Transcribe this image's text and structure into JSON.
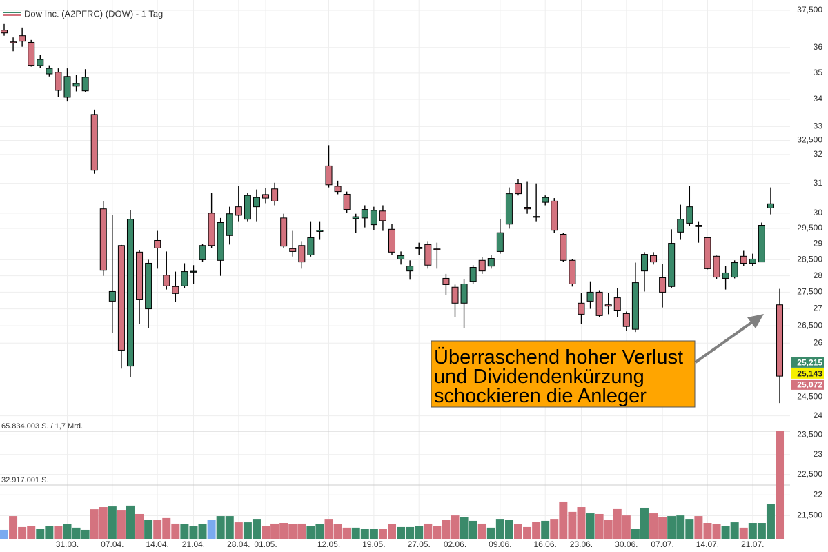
{
  "chart_data": {
    "type": "candlestick",
    "title": "Dow Inc. (A2PFRC) (DOW) - 1 Tag",
    "categories": [
      null,
      null,
      null,
      null,
      null,
      null,
      null,
      "31.03.",
      null,
      null,
      null,
      null,
      "07.04.",
      null,
      null,
      null,
      null,
      "14.04.",
      null,
      null,
      null,
      "21.04.",
      null,
      null,
      null,
      null,
      "28.04.",
      null,
      null,
      "01.05.",
      null,
      null,
      null,
      null,
      null,
      null,
      "12.05.",
      null,
      null,
      null,
      null,
      "19.05.",
      null,
      null,
      null,
      null,
      "27.05.",
      null,
      null,
      null,
      "02.06.",
      null,
      null,
      null,
      null,
      "09.06.",
      null,
      null,
      null,
      null,
      "16.06.",
      null,
      null,
      null,
      "23.06.",
      null,
      null,
      null,
      null,
      "30.06.",
      null,
      null,
      null,
      "07.07.",
      null,
      null,
      null,
      null,
      "14.07.",
      null,
      null,
      null,
      null,
      "21.07.",
      null,
      null,
      null
    ],
    "open": [
      36.69,
      36.22,
      36.47,
      36.2,
      35.29,
      34.97,
      35.03,
      34.08,
      34.5,
      34.32,
      33.44,
      30.14,
      27.23,
      28.95,
      25.35,
      28.74,
      27.0,
      29.11,
      28.02,
      27.67,
      27.69,
      28.12,
      28.5,
      30.0,
      28.48,
      29.27,
      30.21,
      29.8,
      30.21,
      30.62,
      30.81,
      29.84,
      28.85,
      28.95,
      28.65,
      29.4,
      31.6,
      30.9,
      30.63,
      29.82,
      29.84,
      29.62,
      30.07,
      29.47,
      28.52,
      28.15,
      28.85,
      28.98,
      28.84,
      27.92,
      27.65,
      27.17,
      27.83,
      28.48,
      28.3,
      28.76,
      29.64,
      31.0,
      30.19,
      29.89,
      30.36,
      30.4,
      29.31,
      28.48,
      27.17,
      27.23,
      27.5,
      27.12,
      27.33,
      26.86,
      26.4,
      28.15,
      28.63,
      27.94,
      27.67,
      29.38,
      29.67,
      29.6,
      29.2,
      28.61,
      27.92,
      27.96,
      28.61,
      28.39,
      28.43,
      30.17,
      27.12
    ],
    "high": [
      36.94,
      36.4,
      36.8,
      36.3,
      35.7,
      35.3,
      35.18,
      35.18,
      34.92,
      35.15,
      33.62,
      30.4,
      29.93,
      28.97,
      30.1,
      28.8,
      28.5,
      29.42,
      28.76,
      28.13,
      28.39,
      28.33,
      29.0,
      30.68,
      29.84,
      30.21,
      30.9,
      30.68,
      30.79,
      30.84,
      31.02,
      29.98,
      29.42,
      29.09,
      29.71,
      29.71,
      32.33,
      31.09,
      30.72,
      29.98,
      30.26,
      30.21,
      30.26,
      29.64,
      28.76,
      28.48,
      29.04,
      29.09,
      29.04,
      28.06,
      27.73,
      27.9,
      28.33,
      28.59,
      28.65,
      29.8,
      30.86,
      31.14,
      31.05,
      31.0,
      30.59,
      30.5,
      29.36,
      28.52,
      27.48,
      27.83,
      27.54,
      27.48,
      27.63,
      26.92,
      28.41,
      28.74,
      28.74,
      28.37,
      29.47,
      30.28,
      30.9,
      29.71,
      29.2,
      28.63,
      28.3,
      28.48,
      28.78,
      28.69,
      29.69,
      30.86,
      27.6
    ],
    "low": [
      36.47,
      35.85,
      36.03,
      35.25,
      35.2,
      34.87,
      34.08,
      33.92,
      34.3,
      34.26,
      31.33,
      28.0,
      26.3,
      25.28,
      25.04,
      26.56,
      26.44,
      28.22,
      27.58,
      27.21,
      27.62,
      27.75,
      28.43,
      28.87,
      28.0,
      28.98,
      29.71,
      29.71,
      29.71,
      30.33,
      30.26,
      28.87,
      28.6,
      28.22,
      28.6,
      29.13,
      30.86,
      30.63,
      30.02,
      29.36,
      29.53,
      29.44,
      29.42,
      28.65,
      28.35,
      27.88,
      28.65,
      28.22,
      28.22,
      27.42,
      26.76,
      26.44,
      27.75,
      28.06,
      28.22,
      28.69,
      29.49,
      30.59,
      29.98,
      29.71,
      30.26,
      29.36,
      28.43,
      27.67,
      26.56,
      27.0,
      26.76,
      26.84,
      26.76,
      26.36,
      26.32,
      27.52,
      28.35,
      27.04,
      27.62,
      29.13,
      29.58,
      29.04,
      28.2,
      27.9,
      27.58,
      27.92,
      28.3,
      28.3,
      28.43,
      29.96,
      24.34
    ],
    "close": [
      36.58,
      36.18,
      36.25,
      35.3,
      35.53,
      35.18,
      34.34,
      34.87,
      34.6,
      34.84,
      31.45,
      28.17,
      27.52,
      25.8,
      29.8,
      27.27,
      28.39,
      28.87,
      27.69,
      27.46,
      28.13,
      28.14,
      28.95,
      28.95,
      29.69,
      29.98,
      29.93,
      30.59,
      30.52,
      30.5,
      30.4,
      28.93,
      28.76,
      28.43,
      29.2,
      29.44,
      30.95,
      30.72,
      30.12,
      29.88,
      30.12,
      30.09,
      29.75,
      28.74,
      28.63,
      28.3,
      28.89,
      28.33,
      28.82,
      27.73,
      27.17,
      27.75,
      28.26,
      28.15,
      28.54,
      29.36,
      30.65,
      30.65,
      30.14,
      29.87,
      30.52,
      29.44,
      28.48,
      27.75,
      26.84,
      27.5,
      26.8,
      27.08,
      26.96,
      26.48,
      27.79,
      28.67,
      28.43,
      27.5,
      29.02,
      29.8,
      30.21,
      29.56,
      28.22,
      27.96,
      28.09,
      28.41,
      28.39,
      28.52,
      29.6,
      30.31,
      25.072
    ],
    "up_color": "#3a8a6a",
    "down_color": "#d4737f",
    "ylog": true,
    "ylim": [
      20.96,
      37.93
    ],
    "yticks": [
      {
        "value": 37.5,
        "label": "37,500"
      },
      36,
      35,
      34,
      33,
      {
        "value": 32.5,
        "label": "32,500"
      },
      32,
      31,
      30,
      {
        "value": 29.5,
        "label": "29,500"
      },
      29,
      {
        "value": 28.5,
        "label": "28,500"
      },
      28,
      {
        "value": 27.5,
        "label": "27,500"
      },
      27,
      {
        "value": 26.5,
        "label": "26,500"
      },
      26,
      {
        "value": 24.5,
        "label": "24,500"
      },
      24,
      {
        "value": 23.5,
        "label": "23,500"
      },
      23,
      {
        "value": 22.5,
        "label": "22,500"
      },
      22,
      {
        "value": 21.5,
        "label": "21,500"
      }
    ],
    "grid": true,
    "last_prices": [
      {
        "value": 25.215,
        "label": "25,215",
        "color": "#3a8a6a",
        "text_color": "#ffffff"
      },
      {
        "value": 25.143,
        "label": "25,143",
        "color": "#f5f000",
        "text_color": "#222222"
      },
      {
        "value": 25.072,
        "label": "25,072",
        "color": "#d4737f",
        "text_color": "#ffffff"
      }
    ],
    "annotation": {
      "lines": [
        "Überraschend hoher Verlust",
        "und Dividendenkürzung",
        "schockieren die Anleger"
      ],
      "color": "#ffa500"
    },
    "volume": {
      "values": [
        5500000,
        13900000,
        7200000,
        7600000,
        6300000,
        7600000,
        7600000,
        8900000,
        6800000,
        5500000,
        18100000,
        19400000,
        19800000,
        17700000,
        20300000,
        15200000,
        11800000,
        11400000,
        12700000,
        9300000,
        8900000,
        8000000,
        8900000,
        11400000,
        13900000,
        13900000,
        10100000,
        10100000,
        12200000,
        8000000,
        9300000,
        9700000,
        8900000,
        9300000,
        8000000,
        8900000,
        12200000,
        8900000,
        6800000,
        6800000,
        6300000,
        6300000,
        6300000,
        8900000,
        7200000,
        7200000,
        8000000,
        9300000,
        8000000,
        11800000,
        14300000,
        13100000,
        11000000,
        9300000,
        6800000,
        12200000,
        11800000,
        8900000,
        7200000,
        10500000,
        11000000,
        12200000,
        22800000,
        16500000,
        19400000,
        15600000,
        15200000,
        11400000,
        18600000,
        14300000,
        6300000,
        19000000,
        15600000,
        13100000,
        13900000,
        14300000,
        12200000,
        13900000,
        9700000,
        8900000,
        8000000,
        10100000,
        6800000,
        9700000,
        9700000,
        21100000,
        65834003
      ],
      "colors": [
        "#7aaaf0",
        "#d4737f",
        "#d4737f",
        "#d4737f",
        "#3a8a6a",
        "#3a8a6a",
        "#d4737f",
        "#3a8a6a",
        "#3a8a6a",
        "#3a8a6a",
        "#d4737f",
        "#d4737f",
        "#3a8a6a",
        "#d4737f",
        "#3a8a6a",
        "#d4737f",
        "#3a8a6a",
        "#d4737f",
        "#d4737f",
        "#d4737f",
        "#3a8a6a",
        "#3a8a6a",
        "#3a8a6a",
        "#7aaaf0",
        "#3a8a6a",
        "#3a8a6a",
        "#d4737f",
        "#3a8a6a",
        "#3a8a6a",
        "#d4737f",
        "#d4737f",
        "#d4737f",
        "#d4737f",
        "#d4737f",
        "#3a8a6a",
        "#3a8a6a",
        "#d4737f",
        "#d4737f",
        "#d4737f",
        "#3a8a6a",
        "#3a8a6a",
        "#3a8a6a",
        "#d4737f",
        "#d4737f",
        "#3a8a6a",
        "#3a8a6a",
        "#3a8a6a",
        "#d4737f",
        "#d4737f",
        "#d4737f",
        "#d4737f",
        "#3a8a6a",
        "#3a8a6a",
        "#d4737f",
        "#3a8a6a",
        "#3a8a6a",
        "#3a8a6a",
        "#d4737f",
        "#d4737f",
        "#d4737f",
        "#3a8a6a",
        "#d4737f",
        "#d4737f",
        "#d4737f",
        "#d4737f",
        "#3a8a6a",
        "#d4737f",
        "#d4737f",
        "#d4737f",
        "#d4737f",
        "#3a8a6a",
        "#3a8a6a",
        "#d4737f",
        "#d4737f",
        "#3a8a6a",
        "#3a8a6a",
        "#3a8a6a",
        "#d4737f",
        "#d4737f",
        "#d4737f",
        "#3a8a6a",
        "#3a8a6a",
        "#d4737f",
        "#3a8a6a",
        "#3a8a6a",
        "#3a8a6a",
        "#d4737f"
      ],
      "ylim": [
        0,
        65834003
      ],
      "yticks": [
        {
          "value": 32917001,
          "label": "32.917.001 S."
        },
        {
          "value": 65834003,
          "label": "65.834.003 S. / 1,7 Mrd."
        }
      ]
    }
  }
}
